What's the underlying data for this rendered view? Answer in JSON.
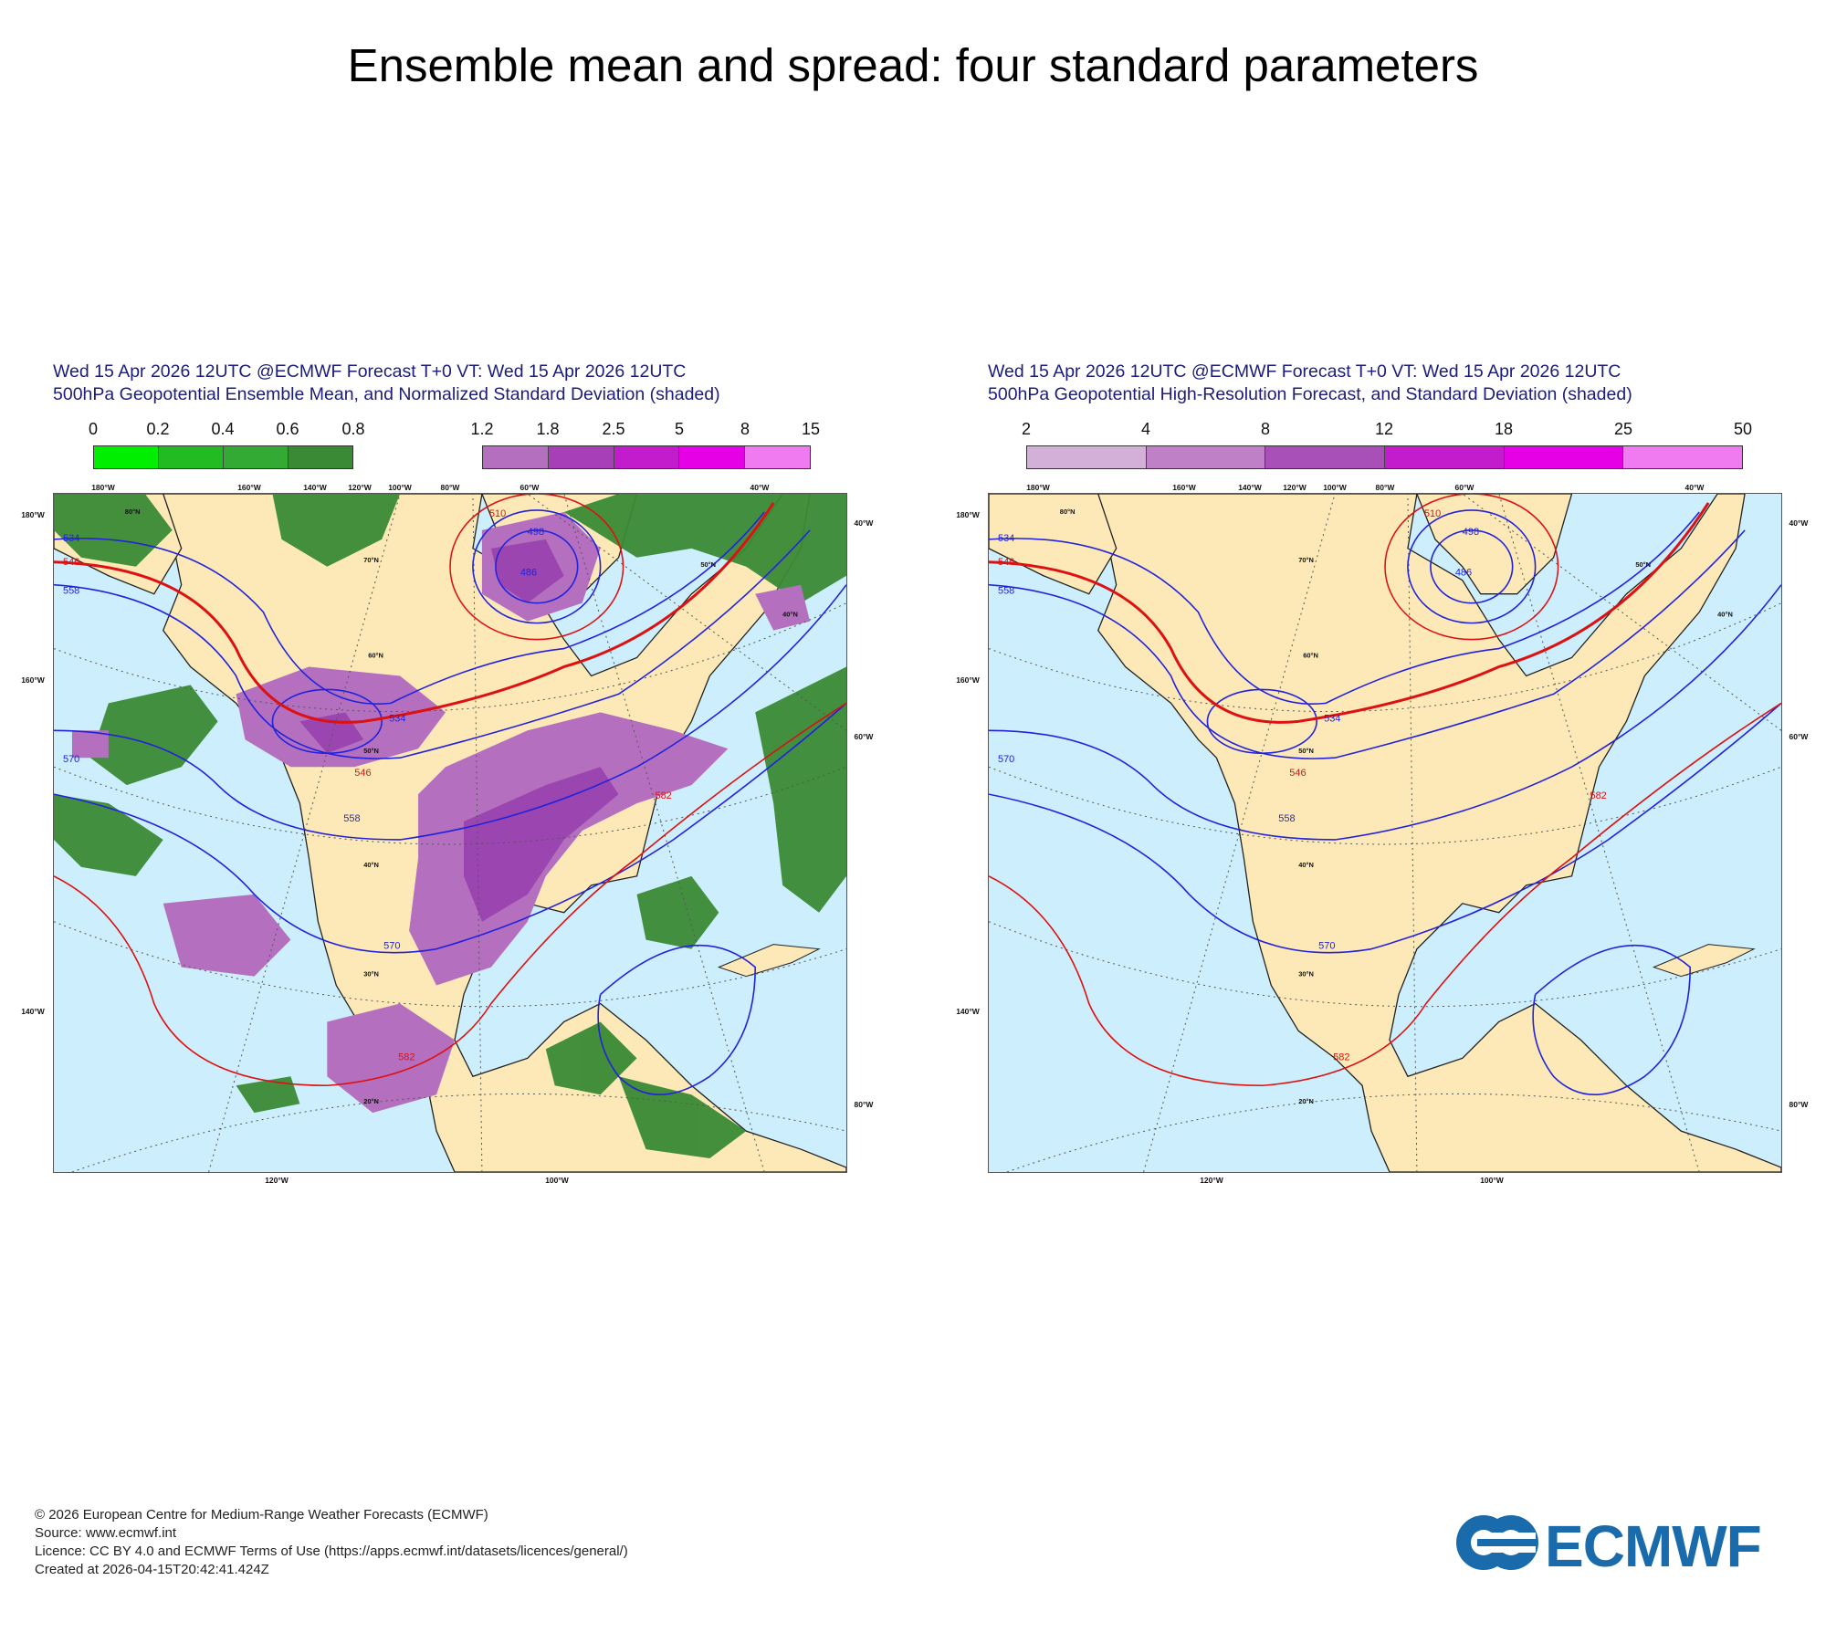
{
  "title": "Ensemble mean and spread: four standard parameters",
  "panels": [
    {
      "header_line1": "Wed 15 Apr 2026 12UTC @ECMWF Forecast T+0 VT: Wed 15 Apr 2026 12UTC",
      "header_line2": "500hPa Geopotential Ensemble Mean, and Normalized Standard Deviation (shaded)",
      "legends": [
        {
          "ticks": [
            "0",
            "0.2",
            "0.4",
            "0.6",
            "0.8"
          ],
          "colors": [
            "#00ee00",
            "#22bb22",
            "#33aa33",
            "#3a9a3a"
          ]
        },
        {
          "ticks": [
            "1.2",
            "1.8",
            "2.5",
            "5",
            "8",
            "15"
          ],
          "colors": [
            "#b470bf",
            "#a63fb8",
            "#c21ccc",
            "#e600e6",
            "#f07af0"
          ]
        }
      ],
      "contour_labels_blue": [
        "534",
        "558",
        "570",
        "498",
        "486",
        "534",
        "558",
        "570"
      ],
      "contour_labels_red": [
        "510",
        "546",
        "582",
        "546",
        "582"
      ],
      "lon_labels_top": [
        "180°W",
        "160°W",
        "140°W",
        "120°W",
        "100°W",
        "80°W",
        "60°W",
        "40°W"
      ],
      "lat_labels": [
        "80°N",
        "70°N",
        "60°N",
        "50°N",
        "40°N",
        "30°N",
        "20°N",
        "50°N",
        "40°N"
      ],
      "left_labels": [
        "180°W",
        "160°W",
        "140°W"
      ],
      "right_labels": [
        "40°W",
        "60°W",
        "80°W"
      ],
      "bottom_labels": [
        "120°W",
        "100°W"
      ]
    },
    {
      "header_line1": "Wed 15 Apr 2026 12UTC @ECMWF Forecast T+0 VT: Wed 15 Apr 2026 12UTC",
      "header_line2": "500hPa Geopotential High-Resolution Forecast, and Standard Deviation (shaded)",
      "legends": [
        {
          "ticks": [
            "2",
            "4",
            "8",
            "12",
            "18",
            "25",
            "50"
          ],
          "colors": [
            "#d3b0d8",
            "#bf80c8",
            "#a84fb8",
            "#c21ccc",
            "#e600e6",
            "#f07af0"
          ]
        }
      ],
      "contour_labels_blue": [
        "534",
        "558",
        "570",
        "498",
        "486",
        "534",
        "558",
        "570"
      ],
      "contour_labels_red": [
        "510",
        "546",
        "582",
        "546",
        "582"
      ],
      "lon_labels_top": [
        "180°W",
        "160°W",
        "140°W",
        "120°W",
        "100°W",
        "80°W",
        "60°W",
        "40°W"
      ],
      "lat_labels": [
        "80°N",
        "70°N",
        "60°N",
        "50°N",
        "40°N",
        "30°N",
        "20°N",
        "50°N",
        "40°N"
      ],
      "left_labels": [
        "180°W",
        "160°W",
        "140°W"
      ],
      "right_labels": [
        "40°W",
        "60°W",
        "80°W"
      ],
      "bottom_labels": [
        "120°W",
        "100°W"
      ]
    }
  ],
  "footer": {
    "line1": "© 2026 European Centre for Medium-Range Weather Forecasts (ECMWF)",
    "line2": "Source: www.ecmwf.int",
    "line3": "Licence: CC BY 4.0 and ECMWF Terms of Use (https://apps.ecmwf.int/datasets/licences/general/)",
    "line4": "Created at 2026-04-15T20:42:41.424Z"
  },
  "logo_text": "ECMWF",
  "colors": {
    "ocean": "#cdeefc",
    "land": "#fde9b8",
    "contour_blue": "#2222dd",
    "contour_red": "#dd1111",
    "spread_purple": "#b470bf",
    "spread_purple_dark": "#9b45b0",
    "skill_green": "#3a8a35",
    "brand": "#1a6bab"
  }
}
